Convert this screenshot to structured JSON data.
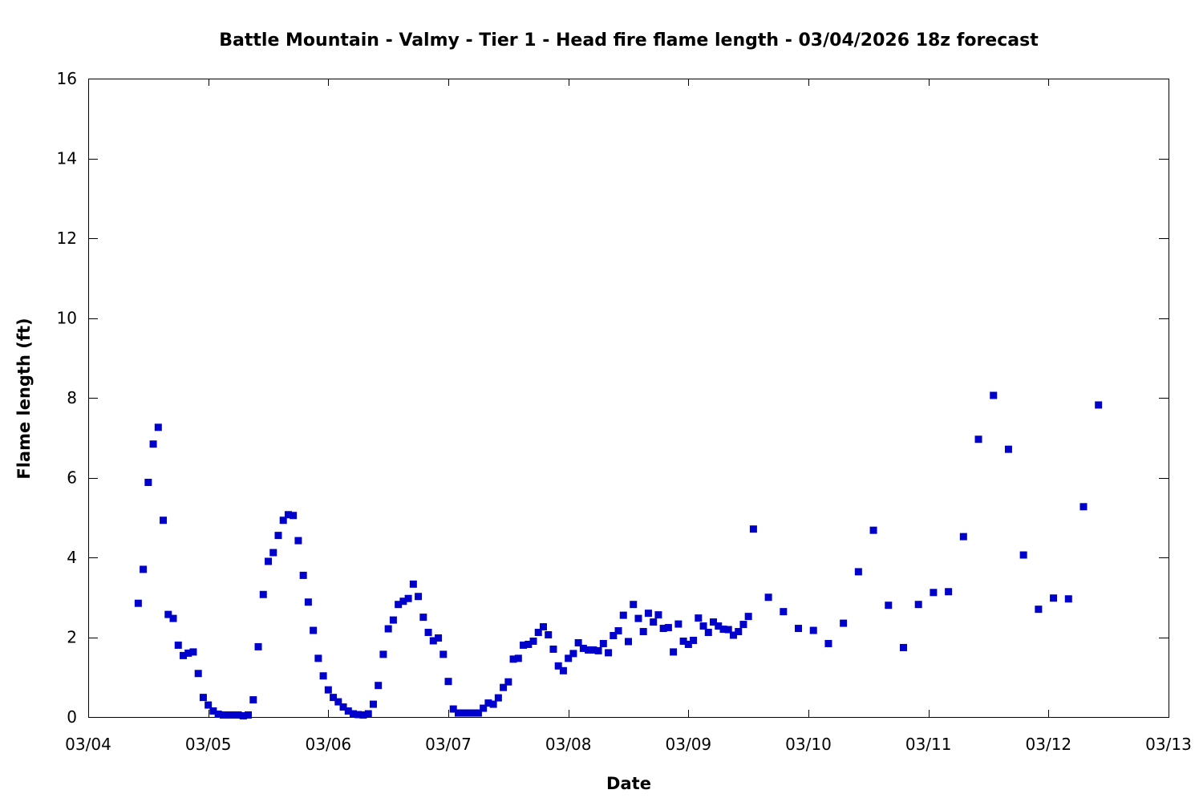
{
  "chart_data": {
    "type": "scatter",
    "title": "Battle Mountain - Valmy - Tier 1 - Head fire flame length - 03/04/2026 18z forecast",
    "xlabel": "Date",
    "ylabel": "Flame length (ft)",
    "xlim": [
      "03/04",
      "03/13"
    ],
    "ylim": [
      0,
      16
    ],
    "x_ticks": [
      "03/04",
      "03/05",
      "03/06",
      "03/07",
      "03/08",
      "03/09",
      "03/10",
      "03/11",
      "03/12",
      "03/13"
    ],
    "y_ticks": [
      0,
      2,
      4,
      6,
      8,
      10,
      12,
      14,
      16
    ],
    "grid": false,
    "marker_color": "#0000cc",
    "series": [
      {
        "points": [
          [
            "03/04 10:00",
            2.85
          ],
          [
            "03/04 11:00",
            3.7
          ],
          [
            "03/04 12:00",
            5.88
          ],
          [
            "03/04 13:00",
            6.84
          ],
          [
            "03/04 14:00",
            7.26
          ],
          [
            "03/04 15:00",
            4.93
          ],
          [
            "03/04 16:00",
            2.57
          ],
          [
            "03/04 17:00",
            2.47
          ],
          [
            "03/04 18:00",
            1.8
          ],
          [
            "03/04 19:00",
            1.54
          ],
          [
            "03/04 20:00",
            1.6
          ],
          [
            "03/04 21:00",
            1.63
          ],
          [
            "03/04 22:00",
            1.09
          ],
          [
            "03/04 23:00",
            0.49
          ],
          [
            "03/05 00:00",
            0.3
          ],
          [
            "03/05 01:00",
            0.15
          ],
          [
            "03/05 02:00",
            0.07
          ],
          [
            "03/05 03:00",
            0.05
          ],
          [
            "03/05 04:00",
            0.05
          ],
          [
            "03/05 05:00",
            0.05
          ],
          [
            "03/05 06:00",
            0.05
          ],
          [
            "03/05 07:00",
            0.03
          ],
          [
            "03/05 08:00",
            0.05
          ],
          [
            "03/05 09:00",
            0.43
          ],
          [
            "03/05 10:00",
            1.76
          ],
          [
            "03/05 11:00",
            3.07
          ],
          [
            "03/05 12:00",
            3.9
          ],
          [
            "03/05 13:00",
            4.12
          ],
          [
            "03/05 14:00",
            4.55
          ],
          [
            "03/05 15:00",
            4.93
          ],
          [
            "03/05 16:00",
            5.07
          ],
          [
            "03/05 17:00",
            5.05
          ],
          [
            "03/05 18:00",
            4.42
          ],
          [
            "03/05 19:00",
            3.55
          ],
          [
            "03/05 20:00",
            2.88
          ],
          [
            "03/05 21:00",
            2.17
          ],
          [
            "03/05 22:00",
            1.47
          ],
          [
            "03/05 23:00",
            1.03
          ],
          [
            "03/06 00:00",
            0.68
          ],
          [
            "03/06 01:00",
            0.49
          ],
          [
            "03/06 02:00",
            0.38
          ],
          [
            "03/06 03:00",
            0.25
          ],
          [
            "03/06 04:00",
            0.15
          ],
          [
            "03/06 05:00",
            0.08
          ],
          [
            "03/06 06:00",
            0.06
          ],
          [
            "03/06 07:00",
            0.05
          ],
          [
            "03/06 08:00",
            0.08
          ],
          [
            "03/06 09:00",
            0.32
          ],
          [
            "03/06 10:00",
            0.79
          ],
          [
            "03/06 11:00",
            1.57
          ],
          [
            "03/06 12:00",
            2.21
          ],
          [
            "03/06 13:00",
            2.43
          ],
          [
            "03/06 14:00",
            2.82
          ],
          [
            "03/06 15:00",
            2.9
          ],
          [
            "03/06 16:00",
            2.97
          ],
          [
            "03/06 17:00",
            3.33
          ],
          [
            "03/06 18:00",
            3.02
          ],
          [
            "03/06 19:00",
            2.5
          ],
          [
            "03/06 20:00",
            2.12
          ],
          [
            "03/06 21:00",
            1.91
          ],
          [
            "03/06 22:00",
            1.98
          ],
          [
            "03/06 23:00",
            1.57
          ],
          [
            "03/07 00:00",
            0.89
          ],
          [
            "03/07 01:00",
            0.2
          ],
          [
            "03/07 02:00",
            0.1
          ],
          [
            "03/07 03:00",
            0.1
          ],
          [
            "03/07 04:00",
            0.1
          ],
          [
            "03/07 05:00",
            0.1
          ],
          [
            "03/07 06:00",
            0.1
          ],
          [
            "03/07 07:00",
            0.22
          ],
          [
            "03/07 08:00",
            0.35
          ],
          [
            "03/07 09:00",
            0.32
          ],
          [
            "03/07 10:00",
            0.48
          ],
          [
            "03/07 11:00",
            0.74
          ],
          [
            "03/07 12:00",
            0.88
          ],
          [
            "03/07 13:00",
            1.45
          ],
          [
            "03/07 14:00",
            1.47
          ],
          [
            "03/07 15:00",
            1.8
          ],
          [
            "03/07 16:00",
            1.82
          ],
          [
            "03/07 17:00",
            1.9
          ],
          [
            "03/07 18:00",
            2.12
          ],
          [
            "03/07 19:00",
            2.26
          ],
          [
            "03/07 20:00",
            2.06
          ],
          [
            "03/07 21:00",
            1.7
          ],
          [
            "03/07 22:00",
            1.28
          ],
          [
            "03/07 23:00",
            1.16
          ],
          [
            "03/08 00:00",
            1.47
          ],
          [
            "03/08 01:00",
            1.59
          ],
          [
            "03/08 02:00",
            1.86
          ],
          [
            "03/08 03:00",
            1.72
          ],
          [
            "03/08 04:00",
            1.68
          ],
          [
            "03/08 05:00",
            1.68
          ],
          [
            "03/08 06:00",
            1.66
          ],
          [
            "03/08 07:00",
            1.84
          ],
          [
            "03/08 08:00",
            1.61
          ],
          [
            "03/08 09:00",
            2.04
          ],
          [
            "03/08 10:00",
            2.16
          ],
          [
            "03/08 11:00",
            2.55
          ],
          [
            "03/08 12:00",
            1.89
          ],
          [
            "03/08 13:00",
            2.82
          ],
          [
            "03/08 14:00",
            2.47
          ],
          [
            "03/08 15:00",
            2.14
          ],
          [
            "03/08 16:00",
            2.6
          ],
          [
            "03/08 17:00",
            2.38
          ],
          [
            "03/08 18:00",
            2.56
          ],
          [
            "03/08 19:00",
            2.22
          ],
          [
            "03/08 20:00",
            2.24
          ],
          [
            "03/08 21:00",
            1.63
          ],
          [
            "03/08 22:00",
            2.33
          ],
          [
            "03/08 23:00",
            1.9
          ],
          [
            "03/09 00:00",
            1.82
          ],
          [
            "03/09 01:00",
            1.92
          ],
          [
            "03/09 02:00",
            2.48
          ],
          [
            "03/09 03:00",
            2.28
          ],
          [
            "03/09 04:00",
            2.12
          ],
          [
            "03/09 05:00",
            2.38
          ],
          [
            "03/09 06:00",
            2.28
          ],
          [
            "03/09 07:00",
            2.2
          ],
          [
            "03/09 08:00",
            2.19
          ],
          [
            "03/09 09:00",
            2.05
          ],
          [
            "03/09 10:00",
            2.14
          ],
          [
            "03/09 11:00",
            2.32
          ],
          [
            "03/09 12:00",
            2.52
          ],
          [
            "03/09 13:00",
            4.71
          ],
          [
            "03/09 16:00",
            3.0
          ],
          [
            "03/09 19:00",
            2.64
          ],
          [
            "03/09 22:00",
            2.22
          ],
          [
            "03/10 01:00",
            2.17
          ],
          [
            "03/10 04:00",
            1.84
          ],
          [
            "03/10 07:00",
            2.35
          ],
          [
            "03/10 10:00",
            3.64
          ],
          [
            "03/10 13:00",
            4.68
          ],
          [
            "03/10 16:00",
            2.8
          ],
          [
            "03/10 19:00",
            1.74
          ],
          [
            "03/10 22:00",
            2.82
          ],
          [
            "03/11 01:00",
            3.12
          ],
          [
            "03/11 04:00",
            3.14
          ],
          [
            "03/11 07:00",
            4.52
          ],
          [
            "03/11 10:00",
            6.96
          ],
          [
            "03/11 13:00",
            8.06
          ],
          [
            "03/11 16:00",
            6.71
          ],
          [
            "03/11 19:00",
            4.06
          ],
          [
            "03/11 22:00",
            2.7
          ],
          [
            "03/12 01:00",
            2.98
          ],
          [
            "03/12 04:00",
            2.96
          ],
          [
            "03/12 07:00",
            5.27
          ],
          [
            "03/12 10:00",
            7.82
          ]
        ]
      }
    ]
  }
}
